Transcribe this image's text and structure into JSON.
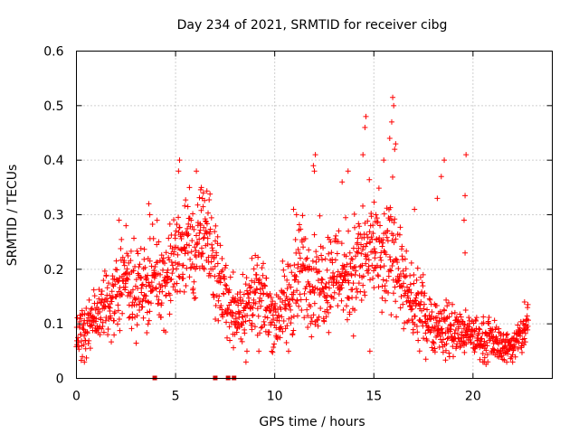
{
  "chart_data": {
    "type": "scatter",
    "title": "Day 234 of 2021, SRMTID for receiver cibg",
    "xlabel": "GPS time / hours",
    "ylabel": "SRMTID / TECUs",
    "xlim": [
      0,
      24
    ],
    "ylim": [
      0,
      0.6
    ],
    "xticks": [
      0,
      5,
      10,
      15,
      20
    ],
    "yticks": [
      0,
      0.1,
      0.2,
      0.3,
      0.4,
      0.5,
      0.6
    ],
    "ytick_labels": [
      "0",
      "0.1",
      "0.2",
      "0.3",
      "0.4",
      "0.5",
      "0.6"
    ],
    "grid": true,
    "marker": "plus",
    "color": "#ff0000",
    "baseline_markers_x": [
      3.95,
      7.0,
      7.65,
      7.95
    ],
    "profile": {
      "comment": "approximate running level and spread of SRMTID (TECU) by hour, read from the scatter",
      "hours": [
        0,
        0.5,
        1,
        1.5,
        2,
        2.5,
        3,
        3.5,
        4,
        4.5,
        5,
        5.5,
        6,
        6.5,
        7,
        7.5,
        8,
        8.5,
        9,
        9.5,
        10,
        10.5,
        11,
        11.5,
        12,
        12.5,
        13,
        13.5,
        14,
        14.5,
        15,
        15.5,
        16,
        16.5,
        17,
        17.5,
        18,
        18.5,
        19,
        19.5,
        20,
        20.5,
        21,
        21.5,
        22,
        22.5,
        22.8
      ],
      "median": [
        0.08,
        0.09,
        0.11,
        0.13,
        0.15,
        0.19,
        0.16,
        0.17,
        0.19,
        0.18,
        0.22,
        0.25,
        0.22,
        0.28,
        0.2,
        0.15,
        0.12,
        0.13,
        0.15,
        0.14,
        0.11,
        0.13,
        0.17,
        0.2,
        0.18,
        0.18,
        0.2,
        0.19,
        0.2,
        0.22,
        0.24,
        0.2,
        0.25,
        0.16,
        0.13,
        0.12,
        0.1,
        0.09,
        0.09,
        0.08,
        0.08,
        0.07,
        0.07,
        0.06,
        0.06,
        0.08,
        0.1
      ],
      "spread": [
        0.04,
        0.04,
        0.04,
        0.05,
        0.06,
        0.06,
        0.06,
        0.06,
        0.06,
        0.06,
        0.07,
        0.07,
        0.07,
        0.07,
        0.07,
        0.05,
        0.05,
        0.05,
        0.05,
        0.05,
        0.05,
        0.06,
        0.07,
        0.08,
        0.07,
        0.07,
        0.07,
        0.07,
        0.08,
        0.08,
        0.08,
        0.08,
        0.09,
        0.06,
        0.05,
        0.05,
        0.04,
        0.04,
        0.04,
        0.03,
        0.03,
        0.03,
        0.03,
        0.02,
        0.02,
        0.03,
        0.03
      ]
    },
    "notable_points": [
      {
        "x": 15.95,
        "y": 0.515
      },
      {
        "x": 16.0,
        "y": 0.5
      },
      {
        "x": 15.9,
        "y": 0.47
      },
      {
        "x": 14.6,
        "y": 0.48
      },
      {
        "x": 14.55,
        "y": 0.46
      },
      {
        "x": 15.8,
        "y": 0.44
      },
      {
        "x": 16.1,
        "y": 0.43
      },
      {
        "x": 16.05,
        "y": 0.42
      },
      {
        "x": 14.45,
        "y": 0.41
      },
      {
        "x": 15.5,
        "y": 0.4
      },
      {
        "x": 12.05,
        "y": 0.41
      },
      {
        "x": 11.95,
        "y": 0.39
      },
      {
        "x": 12.0,
        "y": 0.38
      },
      {
        "x": 19.65,
        "y": 0.41
      },
      {
        "x": 18.55,
        "y": 0.4
      },
      {
        "x": 18.4,
        "y": 0.37
      },
      {
        "x": 5.2,
        "y": 0.4
      },
      {
        "x": 5.15,
        "y": 0.38
      },
      {
        "x": 6.05,
        "y": 0.38
      },
      {
        "x": 6.3,
        "y": 0.35
      },
      {
        "x": 6.4,
        "y": 0.34
      },
      {
        "x": 5.7,
        "y": 0.35
      },
      {
        "x": 13.7,
        "y": 0.38
      },
      {
        "x": 13.4,
        "y": 0.36
      },
      {
        "x": 19.6,
        "y": 0.335
      },
      {
        "x": 19.55,
        "y": 0.29
      },
      {
        "x": 18.2,
        "y": 0.33
      },
      {
        "x": 3.65,
        "y": 0.32
      },
      {
        "x": 3.7,
        "y": 0.3
      },
      {
        "x": 10.95,
        "y": 0.31
      },
      {
        "x": 11.1,
        "y": 0.3
      },
      {
        "x": 17.05,
        "y": 0.31
      },
      {
        "x": 2.15,
        "y": 0.29
      },
      {
        "x": 2.5,
        "y": 0.28
      },
      {
        "x": 8.85,
        "y": 0.22
      },
      {
        "x": 19.6,
        "y": 0.23
      },
      {
        "x": 0.4,
        "y": 0.03
      },
      {
        "x": 0.3,
        "y": 0.04
      },
      {
        "x": 8.55,
        "y": 0.03
      },
      {
        "x": 8.6,
        "y": 0.05
      },
      {
        "x": 9.2,
        "y": 0.05
      },
      {
        "x": 10.7,
        "y": 0.05
      },
      {
        "x": 14.8,
        "y": 0.05
      },
      {
        "x": 21.7,
        "y": 0.03
      },
      {
        "x": 22.0,
        "y": 0.03
      },
      {
        "x": 20.5,
        "y": 0.03
      },
      {
        "x": 22.6,
        "y": 0.14
      },
      {
        "x": 22.75,
        "y": 0.13
      }
    ]
  }
}
